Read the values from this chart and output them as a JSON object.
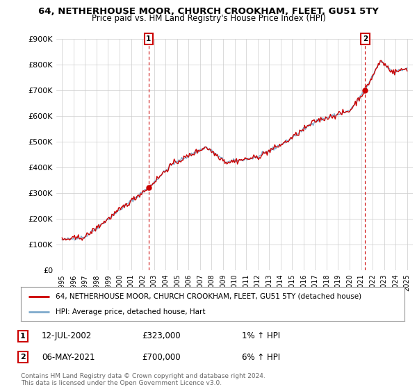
{
  "title": "64, NETHERHOUSE MOOR, CHURCH CROOKHAM, FLEET, GU51 5TY",
  "subtitle": "Price paid vs. HM Land Registry's House Price Index (HPI)",
  "legend_label_red": "64, NETHERHOUSE MOOR, CHURCH CROOKHAM, FLEET, GU51 5TY (detached house)",
  "legend_label_blue": "HPI: Average price, detached house, Hart",
  "annotation1_date": "12-JUL-2002",
  "annotation1_price": "£323,000",
  "annotation1_hpi": "1% ↑ HPI",
  "annotation2_date": "06-MAY-2021",
  "annotation2_price": "£700,000",
  "annotation2_hpi": "6% ↑ HPI",
  "footer1": "Contains HM Land Registry data © Crown copyright and database right 2024.",
  "footer2": "This data is licensed under the Open Government Licence v3.0.",
  "background_color": "#ffffff",
  "plot_bg_color": "#ffffff",
  "grid_color": "#cccccc",
  "red_color": "#cc0000",
  "blue_color": "#7eaacc",
  "marker1_x_year": 2002.53,
  "marker1_y": 323000,
  "marker2_x_year": 2021.35,
  "marker2_y": 700000,
  "ylim": [
    0,
    900000
  ],
  "xlim_start": 1994.5,
  "xlim_end": 2025.5
}
